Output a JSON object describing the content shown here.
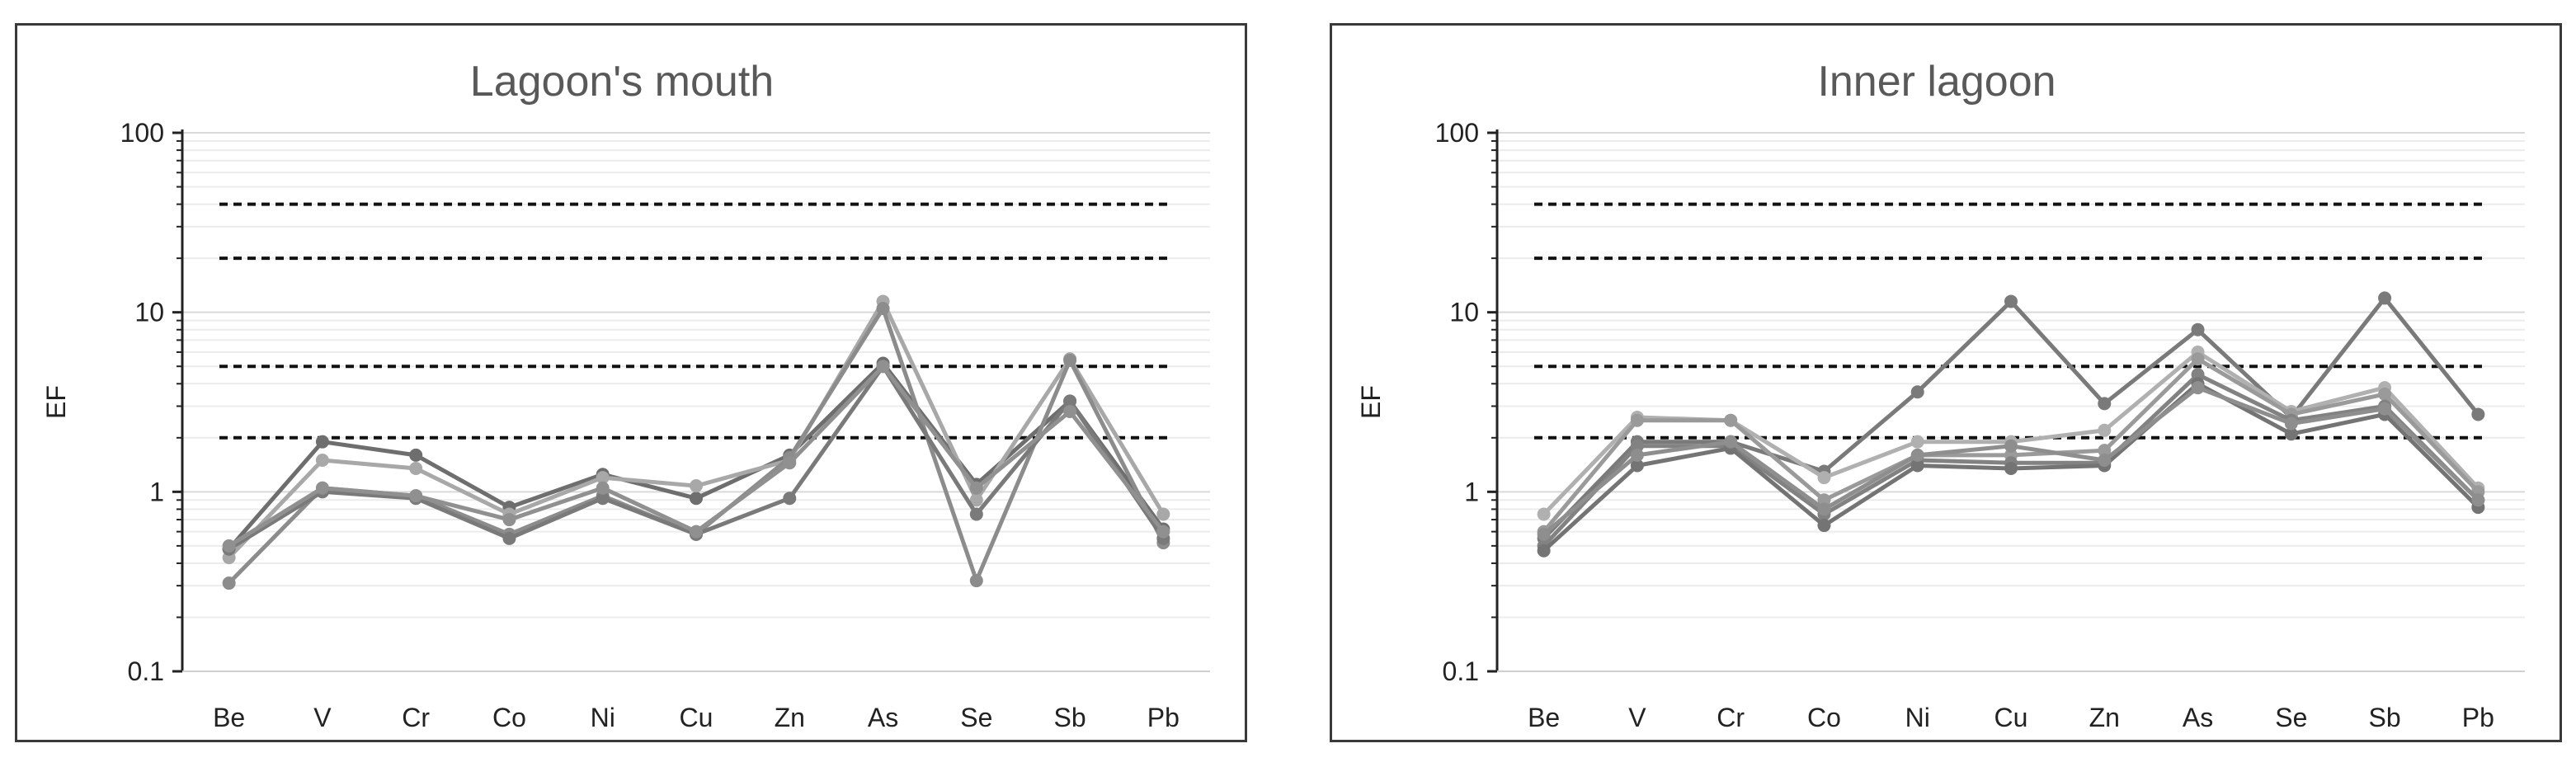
{
  "chart_data": [
    {
      "type": "line",
      "title": "Lagoon's mouth",
      "ylabel": "EF",
      "xlabel": "",
      "yscale": "log",
      "ylim": [
        0.1,
        100
      ],
      "yticks": [
        "0.1",
        "1",
        "10",
        "100"
      ],
      "categories": [
        "Be",
        "V",
        "Cr",
        "Co",
        "Ni",
        "Cu",
        "Zn",
        "As",
        "Se",
        "Sb",
        "Pb"
      ],
      "reference_lines": [
        2,
        5,
        20,
        40
      ],
      "grid": true,
      "legend": "none",
      "series": [
        {
          "color": "#6e6e6e",
          "values": [
            0.48,
            1.9,
            1.6,
            0.82,
            1.25,
            0.92,
            1.6,
            5.2,
            1.1,
            3.2,
            0.62
          ]
        },
        {
          "color": "#a8a8a8",
          "values": [
            0.43,
            1.5,
            1.35,
            0.75,
            1.2,
            1.08,
            1.5,
            11.5,
            0.9,
            5.5,
            0.75
          ]
        },
        {
          "color": "#8c8c8c",
          "values": [
            0.31,
            1.05,
            0.95,
            0.58,
            0.95,
            0.58,
            1.55,
            10.5,
            0.32,
            5.4,
            0.52
          ]
        },
        {
          "color": "#7a7a7a",
          "values": [
            0.48,
            1.0,
            0.92,
            0.55,
            0.92,
            0.58,
            0.92,
            5.0,
            0.75,
            3.2,
            0.55
          ]
        },
        {
          "color": "#909090",
          "values": [
            0.5,
            1.05,
            0.95,
            0.7,
            1.05,
            0.6,
            1.45,
            5.0,
            1.05,
            2.8,
            0.6
          ]
        }
      ]
    },
    {
      "type": "line",
      "title": "Inner lagoon",
      "ylabel": "EF",
      "xlabel": "",
      "yscale": "log",
      "ylim": [
        0.1,
        100
      ],
      "yticks": [
        "0.1",
        "1",
        "10",
        "100"
      ],
      "categories": [
        "Be",
        "V",
        "Cr",
        "Co",
        "Ni",
        "Cu",
        "Zn",
        "As",
        "Se",
        "Sb",
        "Pb"
      ],
      "reference_lines": [
        2,
        5,
        20,
        40
      ],
      "grid": true,
      "legend": "none",
      "series": [
        {
          "color": "#7a7a7a",
          "values": [
            0.55,
            1.9,
            1.9,
            1.3,
            3.6,
            11.5,
            3.1,
            8.0,
            2.6,
            12.0,
            2.7
          ]
        },
        {
          "color": "#b0b0b0",
          "values": [
            0.75,
            2.6,
            2.5,
            1.2,
            1.9,
            1.9,
            2.2,
            6.0,
            2.8,
            3.8,
            1.05
          ]
        },
        {
          "color": "#9a9a9a",
          "values": [
            0.6,
            2.5,
            2.5,
            0.9,
            1.6,
            1.6,
            1.7,
            5.5,
            2.7,
            3.5,
            1.0
          ]
        },
        {
          "color": "#828282",
          "values": [
            0.5,
            1.8,
            1.8,
            0.75,
            1.5,
            1.45,
            1.45,
            4.5,
            2.5,
            3.0,
            0.9
          ]
        },
        {
          "color": "#747474",
          "values": [
            0.47,
            1.4,
            1.75,
            0.65,
            1.4,
            1.35,
            1.4,
            4.0,
            2.1,
            2.7,
            0.82
          ]
        },
        {
          "color": "#8e8e8e",
          "values": [
            0.58,
            1.6,
            1.9,
            0.8,
            1.6,
            1.8,
            1.5,
            3.8,
            2.4,
            2.9,
            0.9
          ]
        }
      ]
    }
  ]
}
